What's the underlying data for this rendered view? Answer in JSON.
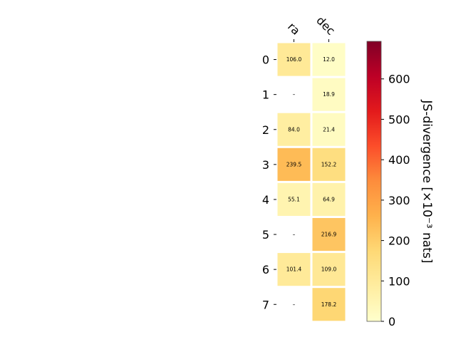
{
  "chart_data": {
    "type": "heatmap",
    "columns": [
      "ra",
      "dec"
    ],
    "rows": [
      "0",
      "1",
      "2",
      "3",
      "4",
      "5",
      "6",
      "7"
    ],
    "values": [
      [
        106.0,
        12.0
      ],
      [
        null,
        18.9
      ],
      [
        84.0,
        21.4
      ],
      [
        239.5,
        152.2
      ],
      [
        55.1,
        64.9
      ],
      [
        null,
        216.9
      ],
      [
        101.4,
        109.0
      ],
      [
        null,
        178.2
      ]
    ],
    "missing_label": "–",
    "colorbar": {
      "label": "JS-divergence [×10⁻³ nats]",
      "min": 0,
      "max": 693,
      "ticks": [
        0,
        100,
        200,
        300,
        400,
        500,
        600
      ],
      "colormap": "YlOrRd"
    },
    "grid": false
  }
}
